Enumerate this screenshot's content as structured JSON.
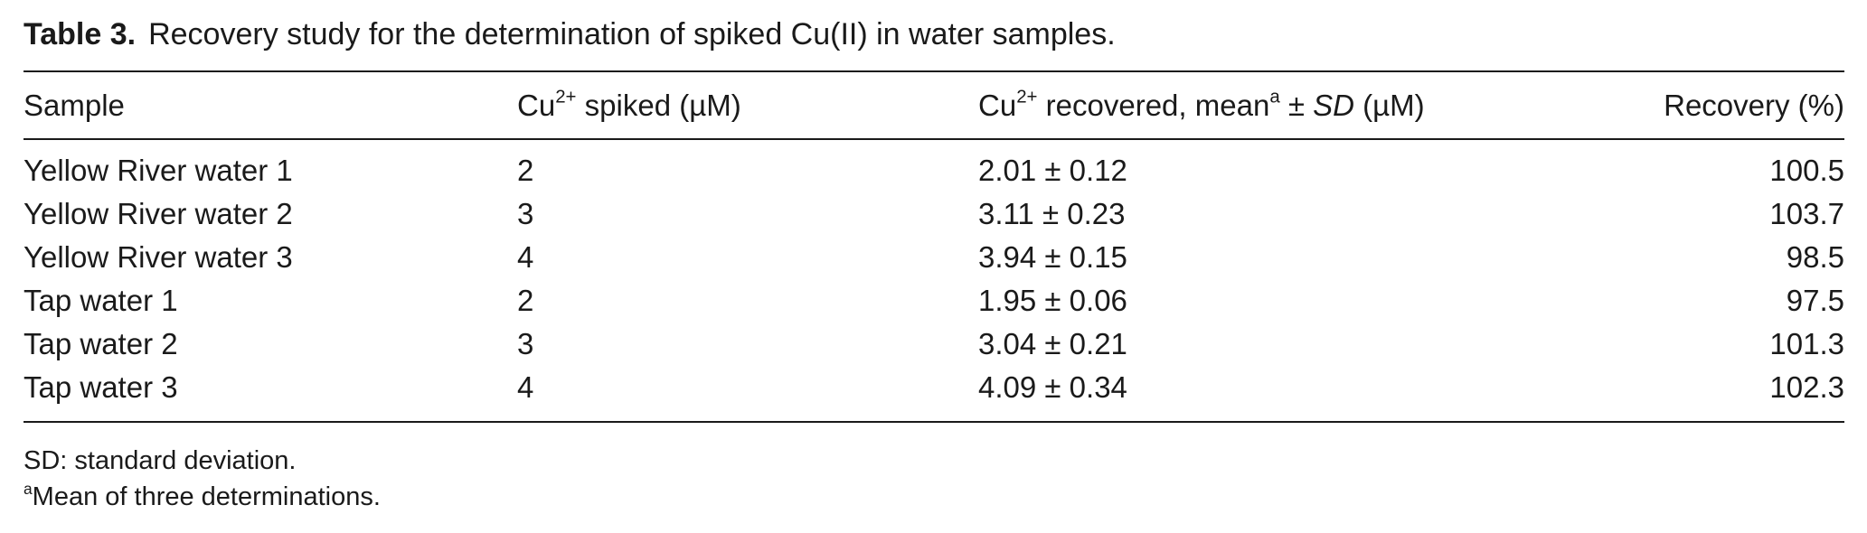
{
  "caption": {
    "label": "Table 3.",
    "text": "Recovery study for the determination of spiked Cu(II) in water samples."
  },
  "headers": {
    "sample": "Sample",
    "spiked_prefix": "Cu",
    "spiked_sup": "2+",
    "spiked_suffix": " spiked (µM)",
    "recovered_prefix": "Cu",
    "recovered_sup": "2+",
    "recovered_mid": " recovered, mean",
    "recovered_note": "a",
    "recovered_pm": " ± ",
    "recovered_sd": "SD",
    "recovered_unit": " (µM)",
    "recovery": "Recovery (%)"
  },
  "rows": [
    {
      "sample": "Yellow River water 1",
      "spiked": "2",
      "recovered": "2.01 ± 0.12",
      "recovery": "100.5"
    },
    {
      "sample": "Yellow River water 2",
      "spiked": "3",
      "recovered": "3.11 ± 0.23",
      "recovery": "103.7"
    },
    {
      "sample": "Yellow River water 3",
      "spiked": "4",
      "recovered": "3.94 ± 0.15",
      "recovery": "98.5"
    },
    {
      "sample": "Tap water 1",
      "spiked": "2",
      "recovered": "1.95 ± 0.06",
      "recovery": "97.5"
    },
    {
      "sample": "Tap water 2",
      "spiked": "3",
      "recovered": "3.04 ± 0.21",
      "recovery": "101.3"
    },
    {
      "sample": "Tap water 3",
      "spiked": "4",
      "recovered": "4.09 ± 0.34",
      "recovery": "102.3"
    }
  ],
  "notes": {
    "sd": "SD: standard deviation.",
    "a_marker": "a",
    "a_text": "Mean of three determinations."
  }
}
